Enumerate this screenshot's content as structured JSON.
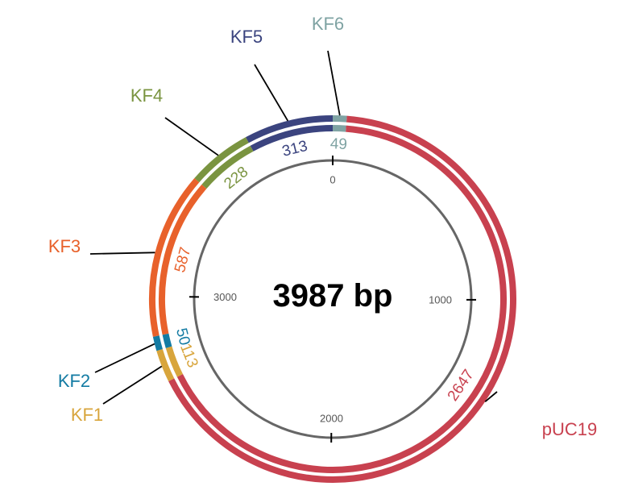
{
  "map": {
    "total_label": "3987 bp",
    "total_bp": 3987,
    "scale_ticks": [
      {
        "value": 0,
        "label": "0"
      },
      {
        "value": 1000,
        "label": "1000"
      },
      {
        "value": 2000,
        "label": "2000"
      },
      {
        "value": 3000,
        "label": "3000"
      }
    ],
    "segments": [
      {
        "name": "pUC19",
        "start_bp": 49,
        "length_bp": 2647,
        "length_label": "2647",
        "color": "#c8414f"
      },
      {
        "name": "KF1",
        "start_bp": 2696,
        "length_bp": 113,
        "length_label": "113",
        "color": "#d8a53c"
      },
      {
        "name": "KF2",
        "start_bp": 2809,
        "length_bp": 50,
        "length_label": "50",
        "color": "#137ba3"
      },
      {
        "name": "KF3",
        "start_bp": 2859,
        "length_bp": 587,
        "length_label": "587",
        "color": "#e8612b"
      },
      {
        "name": "KF4",
        "start_bp": 3446,
        "length_bp": 228,
        "length_label": "228",
        "color": "#7a9440"
      },
      {
        "name": "KF5",
        "start_bp": 3674,
        "length_bp": 313,
        "length_label": "313",
        "color": "#3b447f"
      },
      {
        "name": "KF6",
        "start_bp": 0,
        "length_bp": 49,
        "length_label": "49",
        "color": "#7fa3a3"
      }
    ]
  }
}
